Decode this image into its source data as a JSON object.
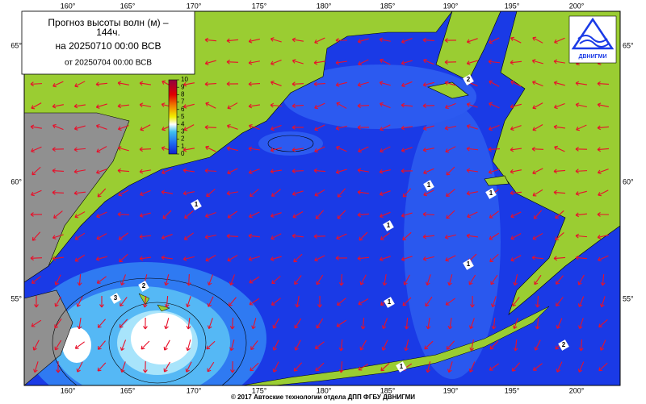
{
  "title": {
    "line1": "Прогноз высоты волн (м) –",
    "line2": "144ч.",
    "line3": "на 20250710 00:00 ВСВ",
    "line4": "от 20250704 00:00 ВСВ"
  },
  "colorbar_ticks": [
    0,
    1,
    2,
    3,
    4,
    5,
    6,
    7,
    8,
    9,
    10
  ],
  "lon_labels": [
    "160°",
    "165°",
    "170°",
    "175°",
    "180°",
    "185°",
    "190°",
    "195°",
    "200°"
  ],
  "lat_labels": [
    "65°",
    "60°",
    "55°"
  ],
  "contour_labels": [
    1,
    1,
    1,
    1,
    1,
    2,
    2,
    3,
    1,
    1,
    2
  ],
  "logo": "ДВНИГМИ",
  "footer": "© 2017 Автоские технологии отдела ДПП ФГБУ ДВНИГМИ"
}
